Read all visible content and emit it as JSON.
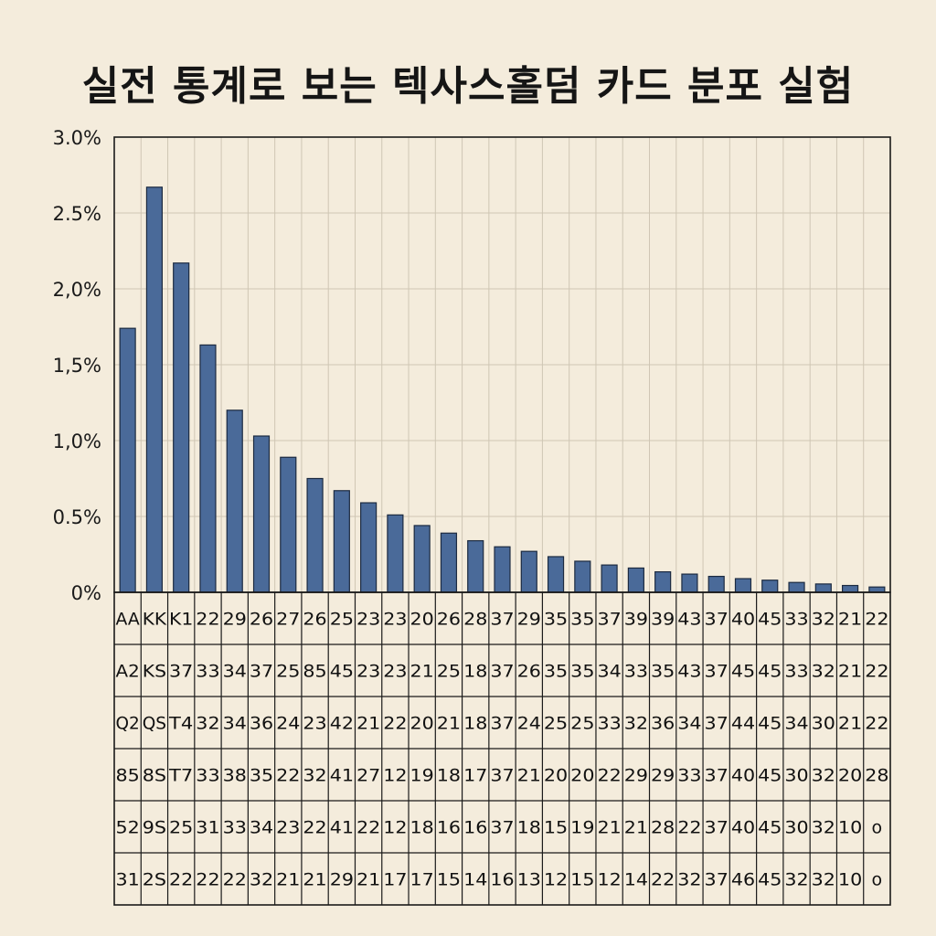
{
  "chart_data": {
    "type": "bar",
    "title": "실전 통계로 보는 텍사스홀덤 카드 분포 실험",
    "xlabel": "",
    "ylabel": "",
    "ylim": [
      0,
      3.0
    ],
    "y_tick_labels": [
      "0%",
      "0.5%",
      "1,0%",
      "1,5%",
      "2,0%",
      "2.5%",
      "3.0%"
    ],
    "grid": true,
    "values": [
      1.74,
      2.67,
      2.17,
      1.63,
      1.2,
      1.03,
      0.89,
      0.75,
      0.67,
      0.59,
      0.51,
      0.44,
      0.39,
      0.34,
      0.3,
      0.27,
      0.235,
      0.205,
      0.18,
      0.16,
      0.135,
      0.12,
      0.105,
      0.09,
      0.08,
      0.065,
      0.055,
      0.045,
      0.035
    ],
    "bar_color": "#4a6a99",
    "table_rows": [
      [
        "AA",
        "KK",
        "K1",
        "22",
        "29",
        "26",
        "27",
        "26",
        "25",
        "23",
        "23",
        "20",
        "26",
        "28",
        "37",
        "29",
        "35",
        "35",
        "37",
        "39",
        "39",
        "43",
        "37",
        "40",
        "45",
        "33",
        "32",
        "21",
        "22"
      ],
      [
        "A2",
        "KS",
        "37",
        "33",
        "34",
        "37",
        "25",
        "85",
        "45",
        "23",
        "23",
        "21",
        "25",
        "18",
        "37",
        "26",
        "35",
        "35",
        "34",
        "33",
        "35",
        "43",
        "37",
        "45",
        "45",
        "33",
        "32",
        "21",
        "22"
      ],
      [
        "Q2",
        "QS",
        "T4",
        "32",
        "34",
        "36",
        "24",
        "23",
        "42",
        "21",
        "22",
        "20",
        "21",
        "18",
        "37",
        "24",
        "25",
        "25",
        "33",
        "32",
        "36",
        "34",
        "37",
        "44",
        "45",
        "34",
        "30",
        "21",
        "22"
      ],
      [
        "85",
        "8S",
        "T7",
        "33",
        "38",
        "35",
        "22",
        "32",
        "41",
        "27",
        "12",
        "19",
        "18",
        "17",
        "37",
        "21",
        "20",
        "20",
        "22",
        "29",
        "29",
        "33",
        "37",
        "40",
        "45",
        "30",
        "32",
        "20",
        "28"
      ],
      [
        "52",
        "9S",
        "25",
        "31",
        "33",
        "34",
        "23",
        "22",
        "41",
        "22",
        "12",
        "18",
        "16",
        "16",
        "37",
        "18",
        "15",
        "19",
        "21",
        "21",
        "28",
        "22",
        "37",
        "40",
        "45",
        "30",
        "32",
        "10",
        "o"
      ],
      [
        "31",
        "2S",
        "22",
        "22",
        "22",
        "32",
        "21",
        "21",
        "29",
        "21",
        "17",
        "17",
        "15",
        "14",
        "16",
        "13",
        "12",
        "15",
        "12",
        "14",
        "22",
        "32",
        "37",
        "46",
        "45",
        "32",
        "32",
        "10",
        "o"
      ]
    ]
  }
}
